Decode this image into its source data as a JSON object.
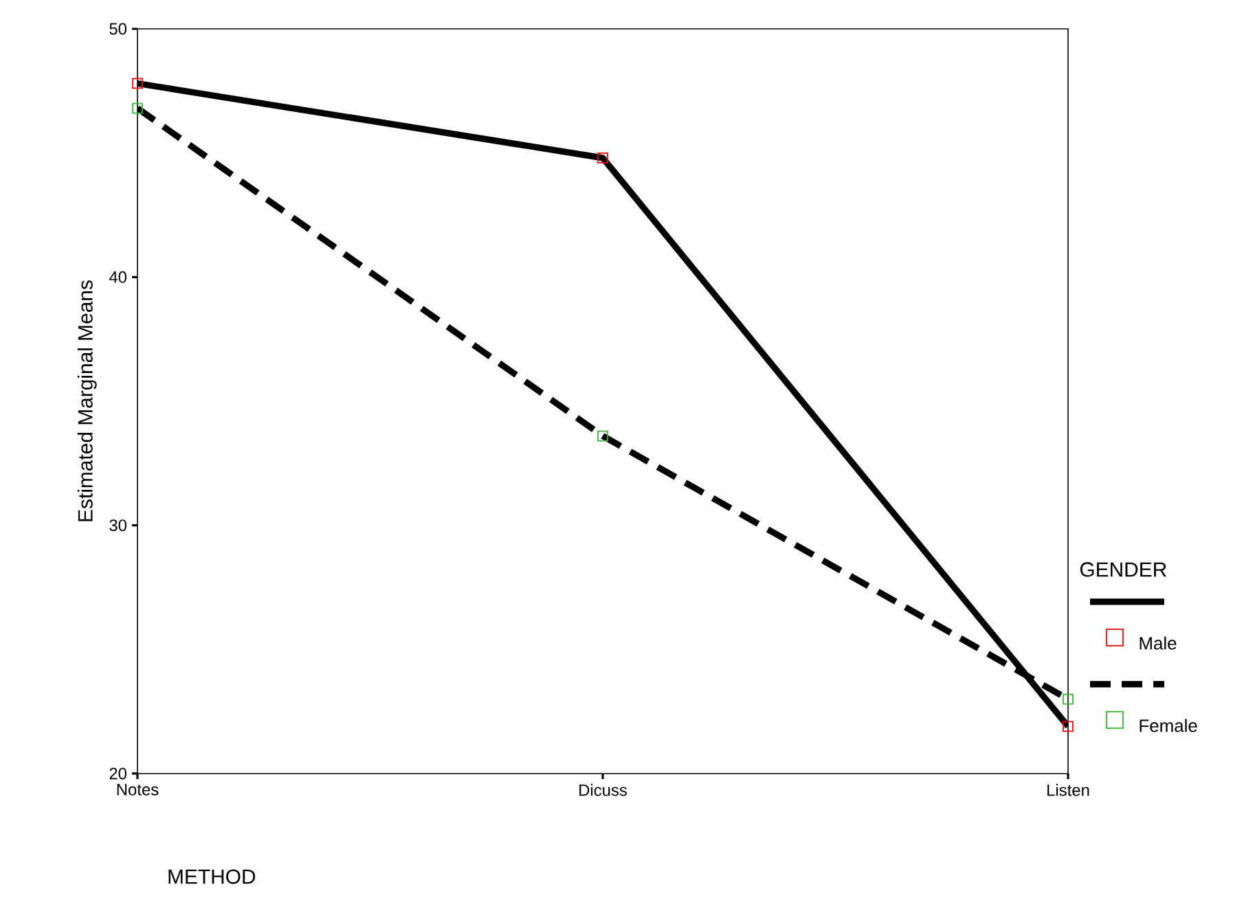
{
  "chart_data": {
    "type": "line",
    "xlabel": "METHOD",
    "ylabel": "Estimated Marginal Means",
    "legend_title": "GENDER",
    "categories": [
      "Notes",
      "Dicuss",
      "Listen"
    ],
    "series": [
      {
        "name": "Male",
        "color": "#000000",
        "line_style": "solid",
        "colors": [
          "#ff0000",
          "#ff0000",
          "#ff0000"
        ],
        "values": [
          47.8,
          44.8,
          21.9
        ]
      },
      {
        "name": "Female",
        "color": "#000000",
        "line_style": "dashed",
        "colors": [
          "#33bb33",
          "#33bb33",
          "#33bb33"
        ],
        "values": [
          46.8,
          33.6,
          23.0
        ]
      }
    ],
    "ylim": [
      20,
      50
    ],
    "yticks": [
      20,
      30,
      40,
      50
    ],
    "marker": "square",
    "legend": "right",
    "grid": false
  }
}
